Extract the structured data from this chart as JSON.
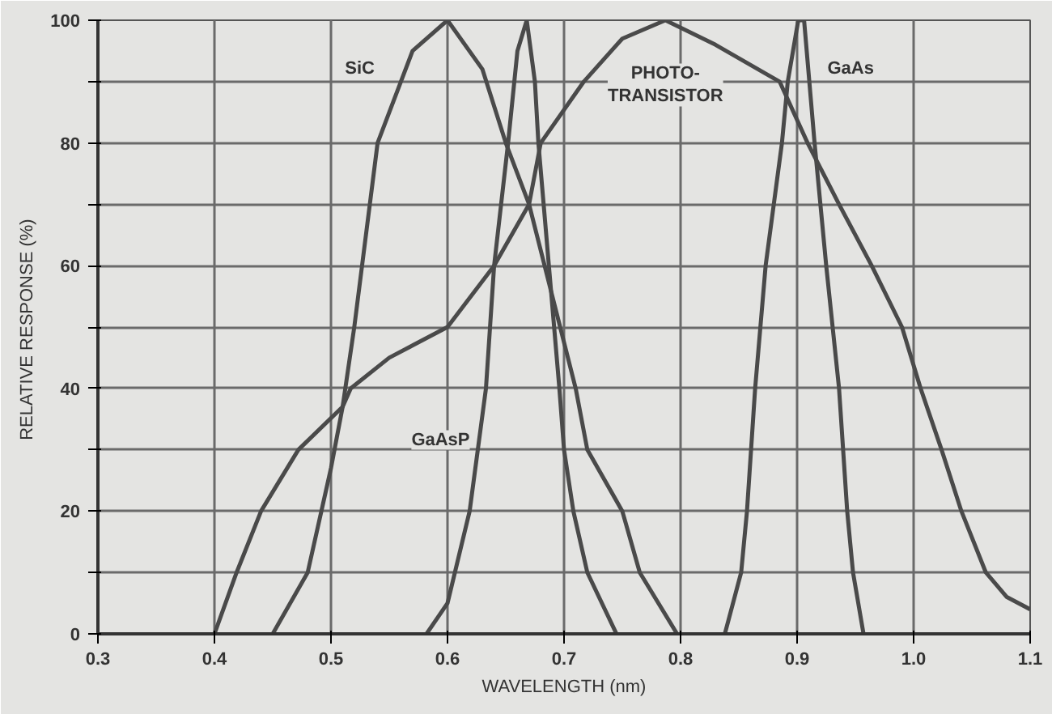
{
  "chart_data": {
    "type": "line",
    "xlabel": "WAVELENGTH (nm)",
    "ylabel": "RELATIVE RESPONSE  (%)",
    "xlim": [
      0.3,
      1.1
    ],
    "ylim": [
      0,
      100
    ],
    "xticks": [
      {
        "value": 0.3,
        "label": "0.3"
      },
      {
        "value": 0.4,
        "label": "0.4"
      },
      {
        "value": 0.5,
        "label": "0.5"
      },
      {
        "value": 0.6,
        "label": "0.6"
      },
      {
        "value": 0.7,
        "label": "0.7"
      },
      {
        "value": 0.8,
        "label": "0.8"
      },
      {
        "value": 0.9,
        "label": "0.9"
      },
      {
        "value": 1.0,
        "label": "1.0"
      },
      {
        "value": 1.1,
        "label": "1.1"
      }
    ],
    "yticks": [
      0,
      {
        "value": 10,
        "label": null
      },
      20,
      {
        "value": 30,
        "label": null
      },
      40,
      {
        "value": 50,
        "label": null
      },
      60,
      {
        "value": 70,
        "label": null
      },
      80,
      {
        "value": 90,
        "label": null
      },
      100
    ],
    "grid": true,
    "marker": "none",
    "line_style": "solid",
    "series": [
      {
        "name": "SiC",
        "color": "#4a4a4a",
        "x": [
          0.45,
          0.48,
          0.5,
          0.51,
          0.52,
          0.54,
          0.56,
          0.57,
          0.6,
          0.63,
          0.65,
          0.67,
          0.69,
          0.71,
          0.72,
          0.75,
          0.765,
          0.797
        ],
        "values": [
          0,
          10,
          27,
          37,
          50,
          80,
          90,
          95,
          100,
          92,
          80,
          70,
          55,
          40,
          30,
          20,
          10,
          0
        ]
      },
      {
        "name": "GaAsP",
        "color": "#4a4a4a",
        "x": [
          0.582,
          0.6,
          0.619,
          0.633,
          0.64,
          0.652,
          0.66,
          0.668,
          0.675,
          0.678,
          0.687,
          0.696,
          0.7,
          0.708,
          0.72,
          0.745
        ],
        "values": [
          0,
          5,
          20,
          40,
          60,
          80,
          95,
          100,
          90,
          80,
          60,
          40,
          30,
          20,
          10,
          0
        ]
      },
      {
        "name": "PHOTO-\nTRANSISTOR",
        "color": "#4a4a4a",
        "x": [
          0.4,
          0.419,
          0.44,
          0.472,
          0.51,
          0.517,
          0.55,
          0.6,
          0.64,
          0.67,
          0.68,
          0.717,
          0.75,
          0.787,
          0.83,
          0.885,
          0.909,
          0.936,
          0.964,
          0.99,
          1.006,
          1.024,
          1.041,
          1.062,
          1.08,
          1.1
        ],
        "values": [
          0,
          10,
          20,
          30,
          37,
          40,
          45,
          50,
          60,
          70,
          80,
          90,
          97,
          100,
          96,
          90,
          80,
          70,
          60,
          50,
          40,
          30,
          20,
          10,
          6,
          4
        ]
      },
      {
        "name": "GaAs",
        "color": "#4a4a4a",
        "x": [
          0.838,
          0.852,
          0.857,
          0.864,
          0.873,
          0.887,
          0.892,
          0.901,
          0.906,
          0.915,
          0.925,
          0.936,
          0.943,
          0.948,
          0.957
        ],
        "values": [
          0,
          10,
          20,
          40,
          60,
          80,
          90,
          100,
          100,
          80,
          60,
          40,
          20,
          10,
          0
        ]
      }
    ]
  }
}
